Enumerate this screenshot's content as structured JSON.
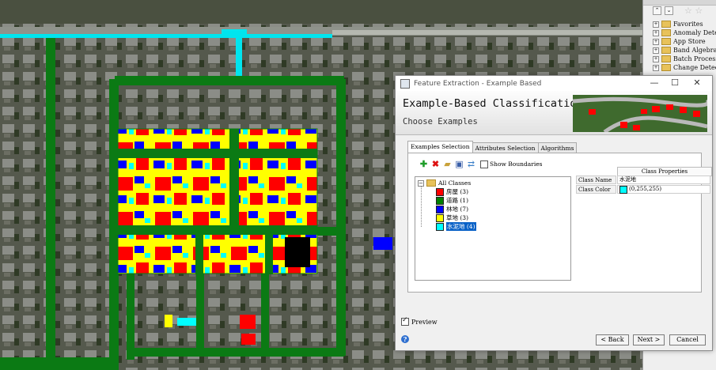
{
  "dialog": {
    "title": "Feature Extraction - Example Based",
    "controls": {
      "minimize": "—",
      "maximize": "☐",
      "close": "✕"
    },
    "banner_title": "Example-Based Classification",
    "banner_subtitle": "Choose Examples",
    "tabs": [
      "Examples Selection",
      "Attributes Selection",
      "Algorithms"
    ],
    "active_tab": "Examples Selection",
    "show_boundaries_label": "Show Boundaries",
    "root_label": "All Classes",
    "classes": [
      {
        "label": "房屋 (3)",
        "color": "#ff0000"
      },
      {
        "label": "道路 (1)",
        "color": "#008000"
      },
      {
        "label": "林地 (7)",
        "color": "#0000ff"
      },
      {
        "label": "草地 (3)",
        "color": "#ffff00"
      },
      {
        "label": "水泥地 (4)",
        "color": "#00ffff",
        "selected": true
      }
    ],
    "properties_header": "Class Properties",
    "class_name_label": "Class Name",
    "class_name_value": "水泥地",
    "class_color_label": "Class Color",
    "class_color_value": "(0,255,255)",
    "class_color_hex": "#00ffff",
    "preview_label": "Preview",
    "buttons": {
      "back": "< Back",
      "next": "Next >",
      "cancel": "Cancel"
    }
  },
  "toolbox": {
    "items": [
      "Favorites",
      "Anomaly Detec",
      "App Store",
      "Band Algebra",
      "Batch Process",
      "Change Detect"
    ]
  }
}
